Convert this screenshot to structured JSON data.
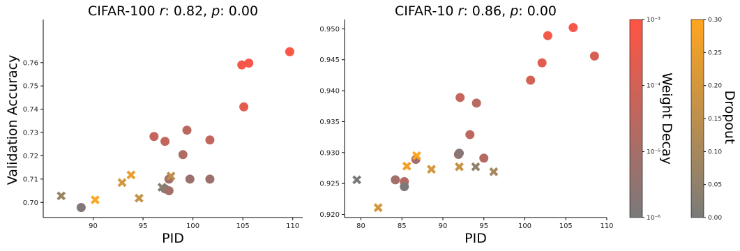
{
  "figure": {
    "cifar100_title": {
      "prefix": "CIFAR-100 ",
      "r_symbol": "r",
      "r_text": ": 0.82, ",
      "p_symbol": "p",
      "p_text": ": 0.00"
    },
    "cifar10_title": {
      "prefix": "CIFAR-10 ",
      "r_symbol": "r",
      "r_text": ": 0.86, ",
      "p_symbol": "p",
      "p_text": ": 0.00"
    }
  },
  "colors": {
    "wd_high": "#ff5544",
    "wd_low": "#7a7a7a",
    "dropout_high": "#ffa51f",
    "dropout_low": "#7a7a7a"
  },
  "colorbars": [
    {
      "label": "Weight Decay",
      "scale": "log",
      "ticks": [
        "10⁻³",
        "10⁻⁴",
        "10⁻⁵",
        "10⁻⁶"
      ]
    },
    {
      "label": "Dropout",
      "scale": "linear",
      "ticks": [
        "0.30",
        "0.25",
        "0.20",
        "0.15",
        "0.10",
        "0.05",
        "0.00"
      ]
    }
  ],
  "chart_data": [
    {
      "type": "scatter",
      "title": "CIFAR-100 r: 0.82, p: 0.00",
      "xlabel": "PID",
      "ylabel": "Validation Accuracy",
      "xlim": [
        85,
        111
      ],
      "ylim": [
        0.6935,
        0.7785
      ],
      "xticks": [
        "90",
        "95",
        "100",
        "105",
        "110"
      ],
      "yticks": [
        "0.70",
        "0.71",
        "0.72",
        "0.73",
        "0.74",
        "0.75",
        "0.76"
      ],
      "legend": "none",
      "series": [
        {
          "marker": "circle",
          "color_by": "weight decay (log10)",
          "points": [
            {
              "x": 88.8,
              "y": 0.6978,
              "c": -5.8
            },
            {
              "x": 96.1,
              "y": 0.7283,
              "c": -4.3
            },
            {
              "x": 97.2,
              "y": 0.7262,
              "c": -4.4
            },
            {
              "x": 97.2,
              "y": 0.7058,
              "c": -5.6
            },
            {
              "x": 97.6,
              "y": 0.71,
              "c": -5.0
            },
            {
              "x": 97.6,
              "y": 0.705,
              "c": -5.0
            },
            {
              "x": 99.0,
              "y": 0.7205,
              "c": -4.8
            },
            {
              "x": 99.4,
              "y": 0.731,
              "c": -4.5
            },
            {
              "x": 99.7,
              "y": 0.71,
              "c": -5.3
            },
            {
              "x": 101.7,
              "y": 0.7268,
              "c": -4.4
            },
            {
              "x": 101.7,
              "y": 0.71,
              "c": -5.2
            },
            {
              "x": 104.9,
              "y": 0.759,
              "c": -3.2
            },
            {
              "x": 105.1,
              "y": 0.741,
              "c": -3.6
            },
            {
              "x": 105.6,
              "y": 0.7598,
              "c": -3.2
            },
            {
              "x": 109.7,
              "y": 0.7647,
              "c": -3.1
            }
          ]
        },
        {
          "marker": "x",
          "color_by": "dropout",
          "points": [
            {
              "x": 86.8,
              "y": 0.7028,
              "c": 0.07
            },
            {
              "x": 90.2,
              "y": 0.7011,
              "c": 0.3
            },
            {
              "x": 92.9,
              "y": 0.7085,
              "c": 0.2
            },
            {
              "x": 93.8,
              "y": 0.7118,
              "c": 0.25
            },
            {
              "x": 94.6,
              "y": 0.7018,
              "c": 0.17
            },
            {
              "x": 96.9,
              "y": 0.7065,
              "c": 0.03
            },
            {
              "x": 97.8,
              "y": 0.7113,
              "c": 0.15
            }
          ]
        }
      ]
    },
    {
      "type": "scatter",
      "title": "CIFAR-10 r: 0.86, p: 0.00",
      "xlabel": "PID",
      "ylabel": "",
      "xlim": [
        78,
        110
      ],
      "ylim": [
        0.9195,
        0.9515
      ],
      "xticks": [
        "80",
        "85",
        "90",
        "95",
        "100",
        "105",
        "110"
      ],
      "yticks": [
        "0.920",
        "0.925",
        "0.930",
        "0.935",
        "0.940",
        "0.945",
        "0.950"
      ],
      "legend": "none",
      "series": [
        {
          "marker": "circle",
          "color_by": "weight decay (log10)",
          "points": [
            {
              "x": 84.2,
              "y": 0.9256,
              "c": -5.1
            },
            {
              "x": 85.3,
              "y": 0.9253,
              "c": -4.7
            },
            {
              "x": 85.3,
              "y": 0.9245,
              "c": -5.9
            },
            {
              "x": 86.7,
              "y": 0.9289,
              "c": -5.0
            },
            {
              "x": 91.9,
              "y": 0.9297,
              "c": -5.3
            },
            {
              "x": 92.0,
              "y": 0.9299,
              "c": -5.7
            },
            {
              "x": 92.1,
              "y": 0.9389,
              "c": -4.3
            },
            {
              "x": 93.3,
              "y": 0.9329,
              "c": -4.5
            },
            {
              "x": 94.1,
              "y": 0.938,
              "c": -4.6
            },
            {
              "x": 95.0,
              "y": 0.9291,
              "c": -4.7
            },
            {
              "x": 100.7,
              "y": 0.9417,
              "c": -4.0
            },
            {
              "x": 102.1,
              "y": 0.9445,
              "c": -3.6
            },
            {
              "x": 102.8,
              "y": 0.9489,
              "c": -3.3
            },
            {
              "x": 105.9,
              "y": 0.9502,
              "c": -3.2
            },
            {
              "x": 108.5,
              "y": 0.9456,
              "c": -3.9
            }
          ]
        },
        {
          "marker": "x",
          "color_by": "dropout",
          "points": [
            {
              "x": 79.5,
              "y": 0.9256,
              "c": 0.0
            },
            {
              "x": 82.1,
              "y": 0.9211,
              "c": 0.2
            },
            {
              "x": 85.6,
              "y": 0.9278,
              "c": 0.27
            },
            {
              "x": 86.8,
              "y": 0.9295,
              "c": 0.3
            },
            {
              "x": 88.6,
              "y": 0.9273,
              "c": 0.2
            },
            {
              "x": 92.0,
              "y": 0.9277,
              "c": 0.17
            },
            {
              "x": 94.0,
              "y": 0.9277,
              "c": 0.05
            },
            {
              "x": 96.2,
              "y": 0.9269,
              "c": 0.1
            }
          ]
        }
      ]
    }
  ]
}
